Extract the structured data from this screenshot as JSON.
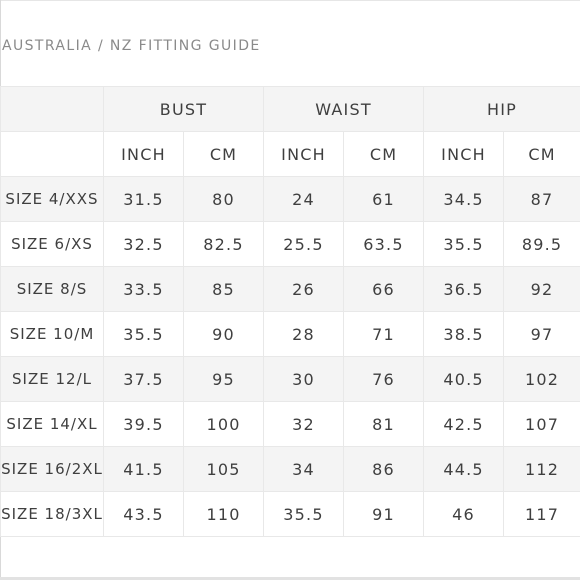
{
  "title": "AUSTRALIA / NZ FITTING GUIDE",
  "groups": [
    "BUST",
    "WAIST",
    "HIP"
  ],
  "units": [
    "INCH",
    "CM",
    "INCH",
    "CM",
    "INCH",
    "CM"
  ],
  "rows": [
    {
      "size": "SIZE 4/XXS",
      "values": [
        "31.5",
        "80",
        "24",
        "61",
        "34.5",
        "87"
      ]
    },
    {
      "size": "SIZE 6/XS",
      "values": [
        "32.5",
        "82.5",
        "25.5",
        "63.5",
        "35.5",
        "89.5"
      ]
    },
    {
      "size": "SIZE 8/S",
      "values": [
        "33.5",
        "85",
        "26",
        "66",
        "36.5",
        "92"
      ]
    },
    {
      "size": "SIZE 10/M",
      "values": [
        "35.5",
        "90",
        "28",
        "71",
        "38.5",
        "97"
      ]
    },
    {
      "size": "SIZE 12/L",
      "values": [
        "37.5",
        "95",
        "30",
        "76",
        "40.5",
        "102"
      ]
    },
    {
      "size": "SIZE 14/XL",
      "values": [
        "39.5",
        "100",
        "32",
        "81",
        "42.5",
        "107"
      ]
    },
    {
      "size": "SIZE 16/2XL",
      "values": [
        "41.5",
        "105",
        "34",
        "86",
        "44.5",
        "112"
      ]
    },
    {
      "size": "SIZE 18/3XL",
      "values": [
        "43.5",
        "110",
        "35.5",
        "91",
        "46",
        "117"
      ]
    }
  ]
}
